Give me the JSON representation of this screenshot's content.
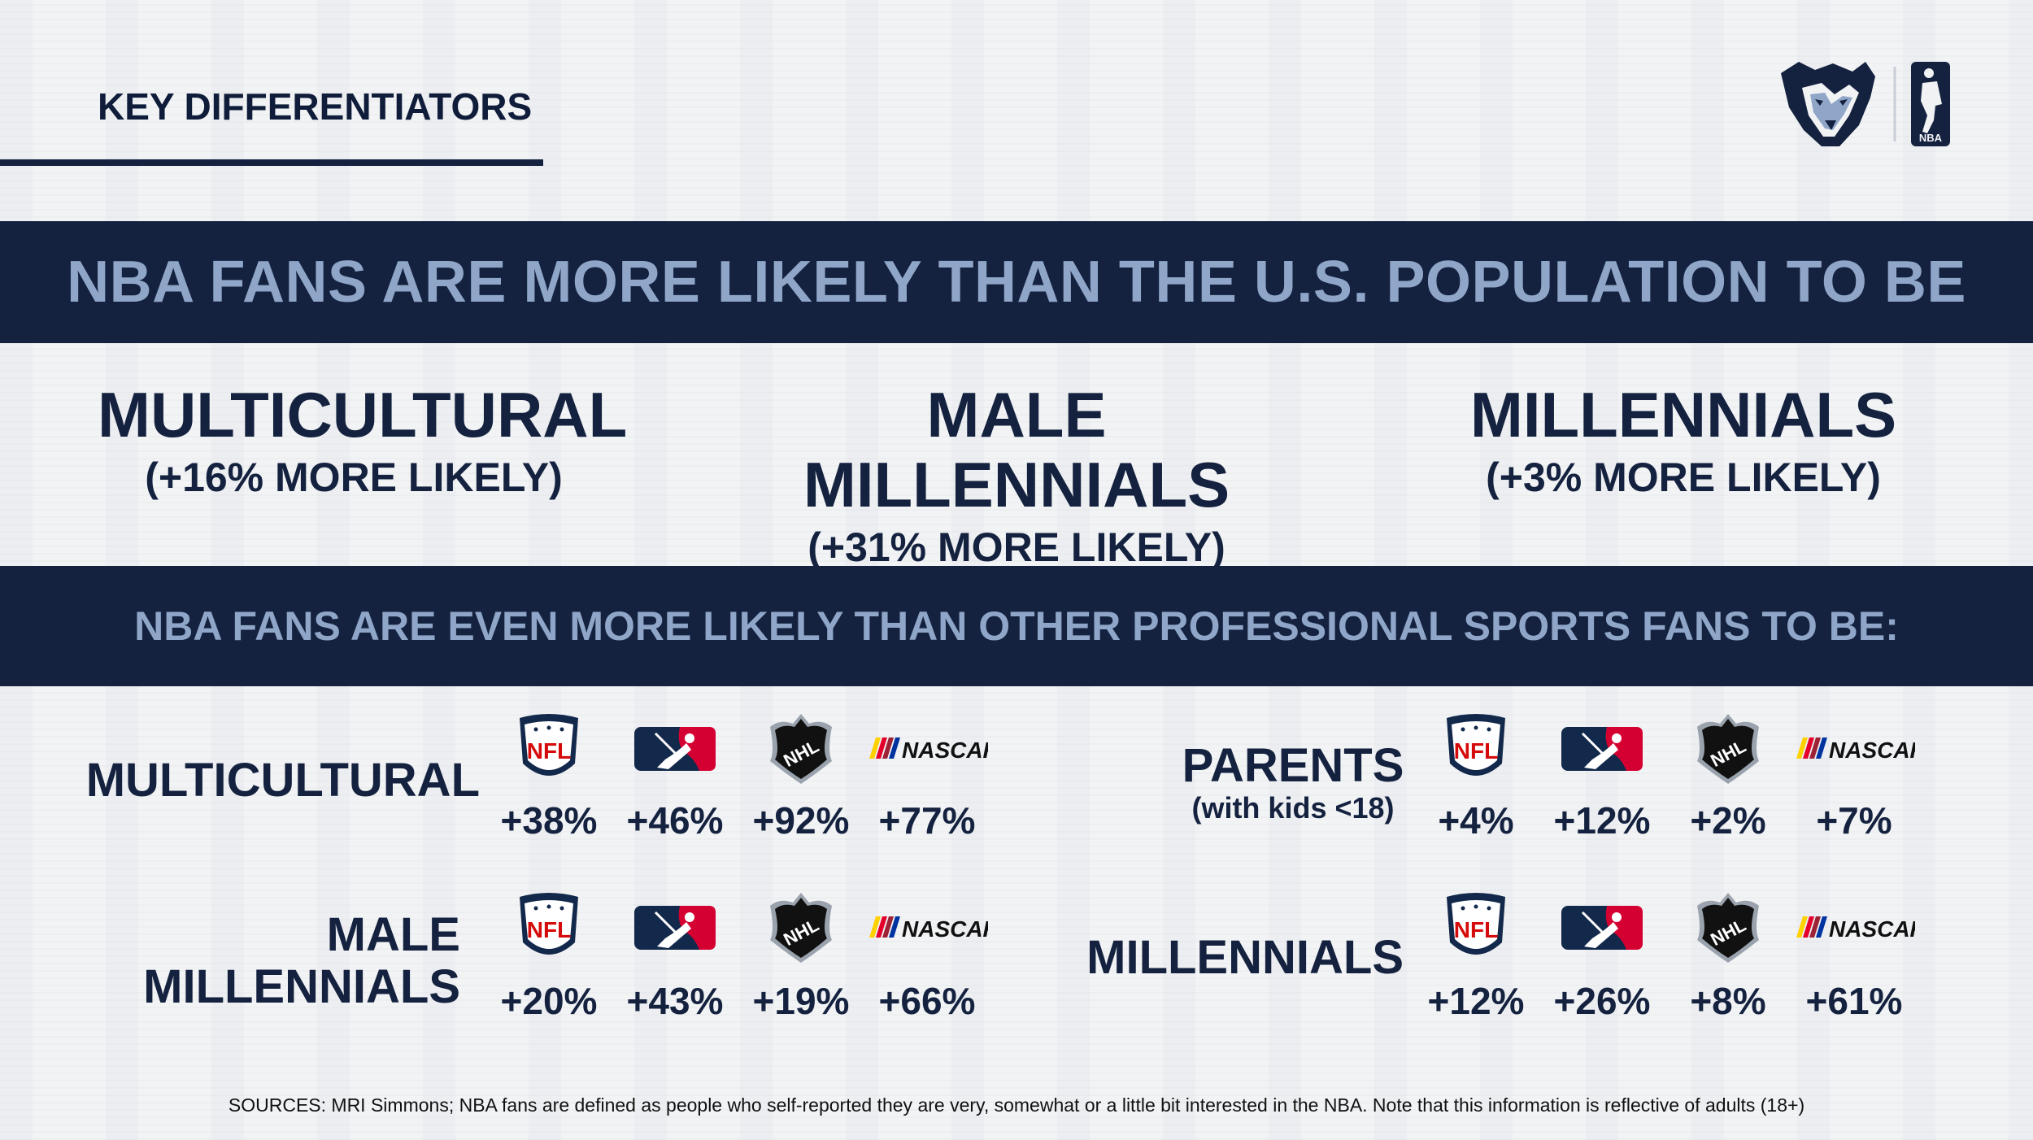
{
  "header": {
    "title": "KEY DIFFERENTIATORS"
  },
  "brand": {
    "team_logo": "grizzlies-bear-logo",
    "league_logo": "nba-logo",
    "league_text": "NBA"
  },
  "banner_top": "NBA FANS ARE MORE LIKELY THAN THE U.S. POPULATION TO BE",
  "headline_stats": [
    {
      "title": "MULTICULTURAL",
      "detail": "(+16% MORE LIKELY)"
    },
    {
      "title": "MALE MILLENNIALS",
      "detail": "(+31% MORE LIKELY)"
    },
    {
      "title": "MILLENNIALS",
      "detail": "(+3% MORE LIKELY)"
    }
  ],
  "banner_bottom": "NBA FANS ARE EVEN MORE LIKELY THAN OTHER PROFESSIONAL SPORTS FANS TO BE:",
  "league_logos": {
    "nfl": "NFL",
    "mlb": "mlb-batter-logo",
    "nhl": "NHL",
    "nascar": "NASCAR"
  },
  "comparisons": [
    {
      "label": "MULTICULTURAL",
      "values": [
        "+38%",
        "+46%",
        "+92%",
        "+77%"
      ]
    },
    {
      "label_line1": "MALE",
      "label_line2": "MILLENNIALS",
      "values": [
        "+20%",
        "+43%",
        "+19%",
        "+66%"
      ]
    },
    {
      "label": "PARENTS",
      "sublabel": "(with kids <18)",
      "values": [
        "+4%",
        "+12%",
        "+2%",
        "+7%"
      ]
    },
    {
      "label": "MILLENNIALS",
      "values": [
        "+12%",
        "+26%",
        "+8%",
        "+61%"
      ]
    }
  ],
  "sources": "SOURCES: MRI Simmons; NBA fans are defined as people who self-reported they are very, somewhat or a little bit interested in the NBA. Note that this information is reflective of adults (18+)",
  "colors": {
    "navy": "#14223f",
    "banner_text": "#8fa6c8",
    "nfl_red": "#d50a0a",
    "mlb_red": "#d50032",
    "background": "#f1f2f4"
  }
}
